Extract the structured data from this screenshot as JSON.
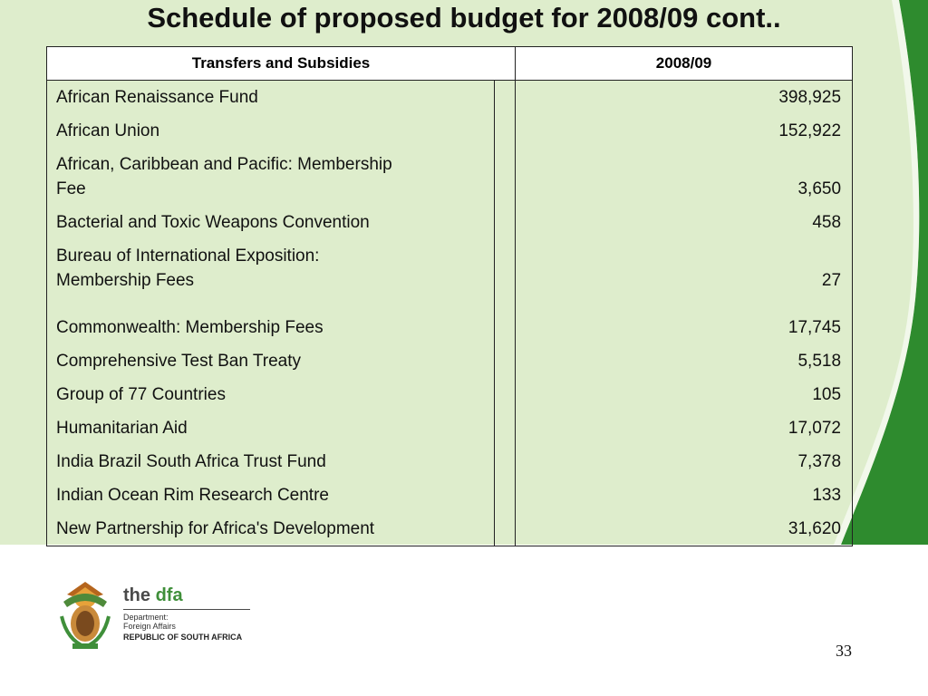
{
  "slide": {
    "title": "Schedule of proposed budget for 2008/09 cont..",
    "page_number": "33"
  },
  "table": {
    "headers": [
      "Transfers and Subsidies",
      "2008/09"
    ],
    "rows": [
      {
        "item_lines": [
          "African Renaissance Fund"
        ],
        "value": "398,925"
      },
      {
        "item_lines": [
          "African Union"
        ],
        "value": "152,922"
      },
      {
        "item_lines": [
          "African, Caribbean and Pacific: Membership",
          "Fee"
        ],
        "value": "3,650"
      },
      {
        "item_lines": [
          "Bacterial and Toxic Weapons Convention"
        ],
        "value": "458"
      },
      {
        "item_lines": [
          "Bureau of International Exposition:",
          "Membership Fees"
        ],
        "value": "27"
      },
      {
        "item_lines": [
          "Commonwealth: Membership Fees"
        ],
        "value": "17,745"
      },
      {
        "item_lines": [
          "Comprehensive Test Ban Treaty"
        ],
        "value": "5,518"
      },
      {
        "item_lines": [
          "Group of 77 Countries"
        ],
        "value": "105"
      },
      {
        "item_lines": [
          "Humanitarian Aid"
        ],
        "value": "17,072"
      },
      {
        "item_lines": [
          "India Brazil South Africa  Trust Fund"
        ],
        "value": "7,378"
      },
      {
        "item_lines": [
          "Indian Ocean Rim Research Centre"
        ],
        "value": "133"
      },
      {
        "item_lines": [
          "New Partnership for Africa's Development"
        ],
        "value": "31,620"
      }
    ]
  },
  "logo": {
    "brand_the": "the",
    "brand_dfa": "dfa",
    "department_line1": "Department:",
    "department_line2": "Foreign Affairs",
    "country": "REPUBLIC OF SOUTH AFRICA",
    "emblem_icon": "coat-of-arms-icon"
  },
  "colors": {
    "background": "#deedcc",
    "swoosh": "#2e8b2e"
  }
}
